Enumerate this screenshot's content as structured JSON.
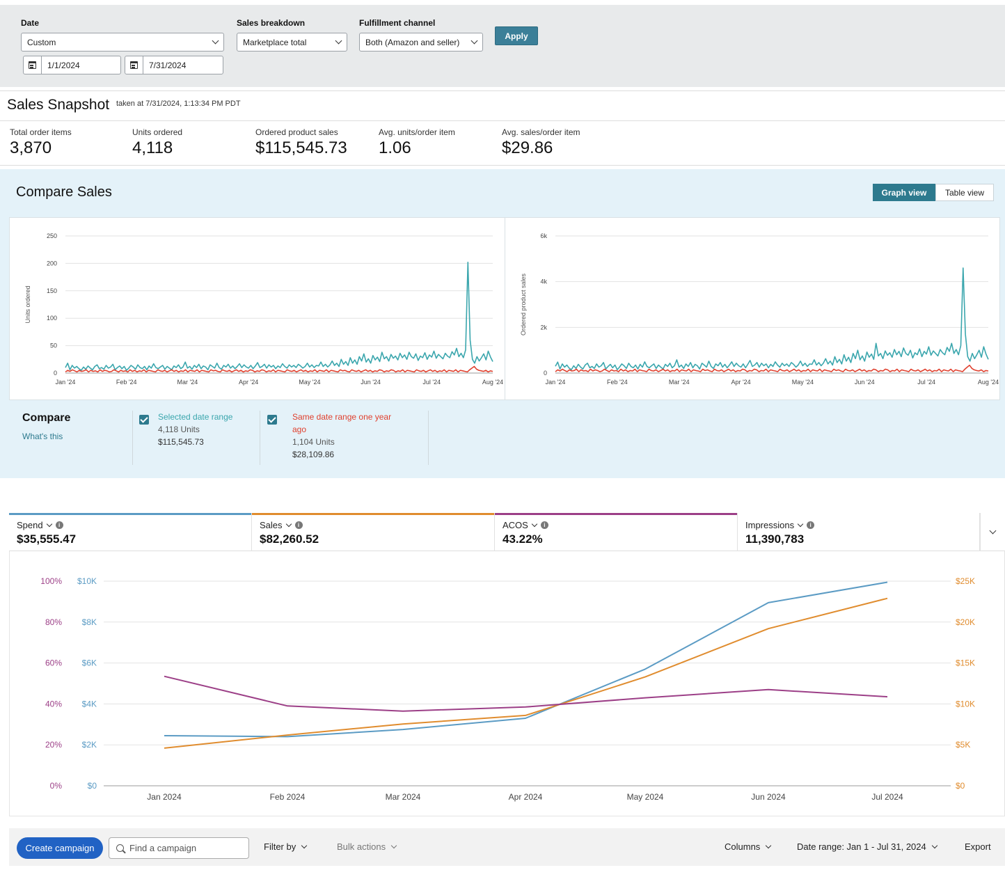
{
  "filters": {
    "date_label": "Date",
    "date_value": "Custom",
    "start_date": "1/1/2024",
    "end_date": "7/31/2024",
    "breakdown_label": "Sales breakdown",
    "breakdown_value": "Marketplace total",
    "channel_label": "Fulfillment channel",
    "channel_value": "Both (Amazon and seller)",
    "apply_label": "Apply"
  },
  "snapshot": {
    "title": "Sales Snapshot",
    "taken": "taken at 7/31/2024, 1:13:34 PM PDT",
    "metrics": [
      {
        "label": "Total order items",
        "value": "3,870"
      },
      {
        "label": "Units ordered",
        "value": "4,118"
      },
      {
        "label": "Ordered product sales",
        "value": "$115,545.73"
      },
      {
        "label": "Avg. units/order item",
        "value": "1.06"
      },
      {
        "label": "Avg. sales/order item",
        "value": "$29.86"
      }
    ]
  },
  "compare": {
    "title": "Compare Sales",
    "graph_view": "Graph view",
    "table_view": "Table view",
    "compare_label": "Compare",
    "whats_this": "What's this",
    "selected": {
      "title": "Selected date range",
      "units": "4,118 Units",
      "sales": "$115,545.73"
    },
    "previous": {
      "title_line1": "Same date range one year",
      "title_line2": "ago",
      "units": "1,104 Units",
      "sales": "$28,109.86"
    },
    "colors": {
      "selected": "#3aa6ad",
      "previous": "#e0402e"
    }
  },
  "ads": {
    "tiles": [
      {
        "label": "Spend",
        "value": "$35,555.47",
        "color": "#5b9bc4"
      },
      {
        "label": "Sales",
        "value": "$82,260.52",
        "color": "#e08c2e"
      },
      {
        "label": "ACOS",
        "value": "43.22%",
        "color": "#9c3f87"
      },
      {
        "label": "Impressions",
        "value": "11,390,783",
        "color": ""
      }
    ]
  },
  "toolbar": {
    "create_campaign": "Create campaign",
    "search_placeholder": "Find a campaign",
    "filter_by": "Filter by",
    "bulk_actions": "Bulk actions",
    "columns": "Columns",
    "date_range": "Date range: Jan 1 - Jul 31, 2024",
    "export": "Export"
  },
  "chart_data": [
    {
      "type": "line",
      "ylabel": "Units ordered",
      "ylim": [
        0,
        250
      ],
      "yticks": [
        "0",
        "50",
        "100",
        "150",
        "200",
        "250"
      ],
      "xticks": [
        "Jan '24",
        "Feb '24",
        "Mar '24",
        "Apr '24",
        "May '24",
        "Jun '24",
        "Jul '24",
        "Aug '24"
      ],
      "grid": true,
      "series": [
        {
          "name": "Selected date range",
          "color": "#3aa6ad",
          "values": [
            10,
            18,
            6,
            14,
            9,
            12,
            8,
            5,
            11,
            7,
            13,
            9,
            6,
            12,
            15,
            8,
            10,
            7,
            14,
            9,
            11,
            16,
            6,
            10,
            13,
            8,
            12,
            5,
            9,
            14,
            11,
            7,
            15,
            10,
            8,
            12,
            6,
            13,
            9,
            17,
            10,
            8,
            11,
            14,
            7,
            12,
            9,
            6,
            13,
            10,
            15,
            8,
            11,
            20,
            9,
            12,
            7,
            14,
            10,
            16,
            8,
            13,
            11,
            6,
            15,
            12,
            9,
            18,
            10,
            7,
            14,
            11,
            16,
            9,
            13,
            8,
            12,
            17,
            10,
            15,
            11,
            9,
            14,
            8,
            13,
            19,
            10,
            12,
            16,
            9,
            15,
            11,
            14,
            8,
            13,
            10,
            17,
            12,
            9,
            15,
            11,
            14,
            10,
            16,
            13,
            9,
            12,
            18,
            11,
            15,
            10,
            14,
            13,
            20,
            12,
            16,
            11,
            15,
            22,
            14,
            18,
            12,
            25,
            16,
            21,
            14,
            28,
            18,
            24,
            16,
            30,
            22,
            35,
            20,
            26,
            18,
            32,
            24,
            29,
            21,
            38,
            26,
            30,
            22,
            34,
            27,
            31,
            24,
            36,
            28,
            33,
            25,
            38,
            30,
            27,
            35,
            23,
            31,
            28,
            37,
            25,
            33,
            29,
            40,
            27,
            34,
            30,
            26,
            36,
            31,
            28,
            39,
            33,
            45,
            30,
            36,
            28,
            42,
            202,
            60,
            25,
            18,
            30,
            22,
            28,
            35,
            24,
            40,
            29,
            21
          ]
        },
        {
          "name": "Same date range one year ago",
          "color": "#e0402e",
          "values": [
            2,
            5,
            3,
            6,
            4,
            2,
            5,
            3,
            4,
            6,
            2,
            5,
            3,
            4,
            2,
            6,
            3,
            5,
            4,
            2,
            3,
            6,
            4,
            2,
            5,
            3,
            4,
            2,
            6,
            3,
            5,
            2,
            4,
            3,
            6,
            2,
            5,
            4,
            3,
            2,
            6,
            4,
            3,
            5,
            2,
            4,
            6,
            3,
            5,
            2,
            4,
            3,
            6,
            2,
            5,
            4,
            3,
            6,
            2,
            5,
            4,
            3,
            2,
            6,
            4,
            5,
            3,
            2,
            6,
            4,
            3,
            5,
            2,
            4,
            6,
            3,
            5,
            2,
            4,
            3,
            6,
            5,
            2,
            4,
            3,
            6,
            5,
            2,
            4,
            3,
            6,
            2,
            5,
            4,
            3,
            2,
            6,
            4,
            3,
            5,
            2,
            4,
            6,
            3,
            5,
            2,
            4,
            3,
            6,
            2,
            5,
            4,
            3,
            6,
            2,
            5,
            4,
            3,
            2,
            6,
            4,
            5,
            3,
            2,
            6,
            4,
            3,
            5,
            2,
            4,
            6,
            3,
            5,
            2,
            4,
            3,
            6,
            5,
            2,
            4,
            3,
            6,
            5,
            2,
            4,
            3,
            6,
            2,
            5,
            4,
            3,
            2,
            6,
            4,
            3,
            5,
            2,
            4,
            6,
            3,
            5,
            2,
            4,
            3,
            6,
            2,
            5,
            4,
            3,
            6,
            2,
            5,
            4,
            3,
            2,
            6,
            9,
            12,
            7,
            5,
            4,
            3,
            5,
            2,
            4,
            3
          ]
        }
      ]
    },
    {
      "type": "line",
      "ylabel": "Ordered product sales",
      "ylim": [
        0,
        6000
      ],
      "yticks": [
        "0",
        "2k",
        "4k",
        "6k"
      ],
      "xticks": [
        "Jan '24",
        "Feb '24",
        "Mar '24",
        "Apr '24",
        "May '24",
        "Jun '24",
        "Jul '24",
        "Aug '24"
      ],
      "grid": true,
      "series": [
        {
          "name": "Selected date range",
          "color": "#3aa6ad",
          "values": [
            300,
            480,
            180,
            400,
            260,
            350,
            220,
            150,
            320,
            200,
            380,
            260,
            180,
            350,
            430,
            230,
            290,
            200,
            400,
            260,
            320,
            460,
            180,
            290,
            380,
            230,
            350,
            150,
            260,
            400,
            320,
            200,
            430,
            290,
            230,
            350,
            180,
            380,
            260,
            490,
            290,
            230,
            320,
            400,
            200,
            350,
            260,
            180,
            380,
            290,
            430,
            230,
            320,
            580,
            260,
            350,
            200,
            400,
            290,
            460,
            230,
            380,
            320,
            180,
            430,
            350,
            260,
            520,
            290,
            200,
            400,
            320,
            460,
            260,
            380,
            230,
            350,
            490,
            290,
            430,
            320,
            260,
            400,
            230,
            380,
            550,
            290,
            350,
            460,
            260,
            430,
            320,
            400,
            230,
            380,
            290,
            490,
            350,
            260,
            430,
            320,
            400,
            290,
            460,
            380,
            260,
            350,
            520,
            320,
            430,
            290,
            400,
            380,
            580,
            350,
            460,
            320,
            430,
            630,
            400,
            520,
            350,
            720,
            460,
            600,
            400,
            800,
            520,
            690,
            460,
            860,
            630,
            1000,
            580,
            750,
            520,
            920,
            690,
            830,
            600,
            1300,
            750,
            860,
            630,
            970,
            780,
            890,
            690,
            1030,
            800,
            950,
            720,
            1100,
            860,
            780,
            1000,
            660,
            890,
            800,
            1060,
            720,
            950,
            830,
            1150,
            780,
            970,
            860,
            750,
            1030,
            890,
            800,
            1120,
            950,
            1300,
            860,
            1030,
            800,
            1200,
            4600,
            1700,
            720,
            520,
            860,
            630,
            800,
            1000,
            690,
            1150,
            830,
            600
          ]
        },
        {
          "name": "Same date range one year ago",
          "color": "#e0402e",
          "values": [
            60,
            140,
            90,
            170,
            110,
            60,
            140,
            90,
            110,
            170,
            60,
            140,
            90,
            110,
            60,
            170,
            90,
            140,
            110,
            60,
            90,
            170,
            110,
            60,
            140,
            90,
            110,
            60,
            170,
            90,
            140,
            60,
            110,
            90,
            170,
            60,
            140,
            110,
            90,
            60,
            170,
            110,
            90,
            140,
            60,
            110,
            170,
            90,
            140,
            60,
            110,
            90,
            170,
            60,
            140,
            110,
            90,
            170,
            60,
            140,
            110,
            90,
            60,
            170,
            110,
            140,
            90,
            60,
            170,
            110,
            90,
            140,
            60,
            110,
            170,
            90,
            140,
            60,
            110,
            90,
            170,
            140,
            60,
            110,
            90,
            170,
            140,
            60,
            110,
            90,
            170,
            60,
            140,
            110,
            90,
            60,
            170,
            110,
            90,
            140,
            60,
            110,
            170,
            90,
            140,
            60,
            110,
            90,
            170,
            60,
            140,
            110,
            90,
            170,
            60,
            140,
            110,
            90,
            60,
            170,
            110,
            140,
            90,
            60,
            170,
            110,
            90,
            140,
            60,
            110,
            170,
            90,
            140,
            60,
            110,
            90,
            170,
            140,
            60,
            110,
            90,
            170,
            140,
            60,
            110,
            90,
            170,
            60,
            140,
            110,
            90,
            60,
            170,
            110,
            90,
            140,
            60,
            110,
            170,
            90,
            140,
            60,
            110,
            90,
            170,
            60,
            140,
            110,
            90,
            170,
            60,
            140,
            110,
            90,
            60,
            170,
            260,
            340,
            200,
            140,
            110,
            90,
            140,
            60,
            110,
            90
          ]
        }
      ]
    },
    {
      "type": "line",
      "categories": [
        "Jan 2024",
        "Feb 2024",
        "Mar 2024",
        "Apr 2024",
        "May 2024",
        "Jun 2024",
        "Jul 2024"
      ],
      "axes": {
        "acos": {
          "ticks": [
            "0%",
            "20%",
            "40%",
            "60%",
            "80%",
            "100%"
          ],
          "range": [
            0,
            100
          ],
          "color": "#9c3f87"
        },
        "spend": {
          "ticks": [
            "$0",
            "$2K",
            "$4K",
            "$6K",
            "$8K",
            "$10K"
          ],
          "range": [
            0,
            10000
          ],
          "color": "#5b9bc4"
        },
        "sales": {
          "ticks": [
            "$0",
            "$5K",
            "$10K",
            "$15K",
            "$20K",
            "$25K"
          ],
          "range": [
            0,
            25000
          ],
          "color": "#e08c2e"
        }
      },
      "grid": true,
      "series": [
        {
          "name": "Spend",
          "axis": "spend",
          "color": "#5b9bc4",
          "values": [
            2450,
            2400,
            2750,
            3300,
            5700,
            8950,
            9950
          ]
        },
        {
          "name": "Sales",
          "axis": "sales",
          "color": "#e08c2e",
          "values": [
            4600,
            6200,
            7550,
            8600,
            13300,
            19200,
            22900
          ]
        },
        {
          "name": "ACOS",
          "axis": "acos",
          "color": "#9c3f87",
          "values": [
            53.5,
            39,
            36.5,
            38.5,
            43,
            47,
            43.5
          ]
        }
      ]
    }
  ]
}
